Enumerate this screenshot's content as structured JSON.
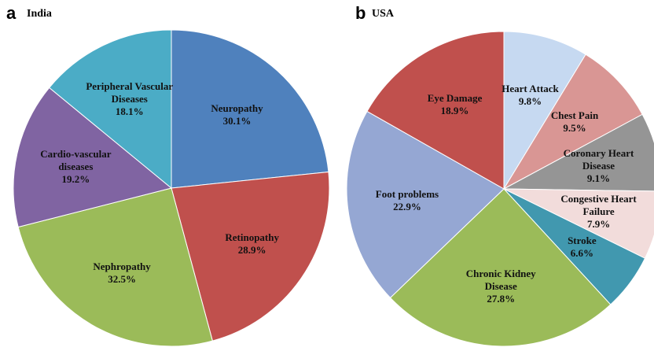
{
  "chart_data": [
    {
      "type": "pie",
      "panel": "a",
      "title": "India",
      "categories": [
        "Neuropathy",
        "Retinopathy",
        "Nephropathy",
        "Cardio-vascular diseases",
        "Peripheral Vascular Diseases"
      ],
      "values": [
        30.1,
        28.9,
        32.5,
        19.2,
        18.1
      ],
      "value_labels": [
        "30.1%",
        "28.9%",
        "32.5%",
        "19.2%",
        "18.1%"
      ],
      "colors": [
        "#4f81bd",
        "#c0504d",
        "#9bbb59",
        "#8064a2",
        "#4bacc6"
      ]
    },
    {
      "type": "pie",
      "panel": "b",
      "title": "USA",
      "categories": [
        "Heart Attack",
        "Chest Pain",
        "Coronary Heart Disease",
        "Congestive Heart Failure",
        "Stroke",
        "Chronic Kidney Disease",
        "Foot problems",
        "Eye Damage"
      ],
      "values": [
        9.8,
        9.5,
        9.1,
        7.9,
        6.6,
        27.8,
        22.9,
        18.9
      ],
      "value_labels": [
        "9.8%",
        "9.5%",
        "9.1%",
        "7.9%",
        "6.6%",
        "27.8%",
        "22.9%",
        "18.9%"
      ],
      "colors": [
        "#c6d9f1",
        "#d99694",
        "#959595",
        "#f2dcdb",
        "#4198af",
        "#9bbb59",
        "#95a7d3",
        "#c0504d"
      ]
    }
  ]
}
